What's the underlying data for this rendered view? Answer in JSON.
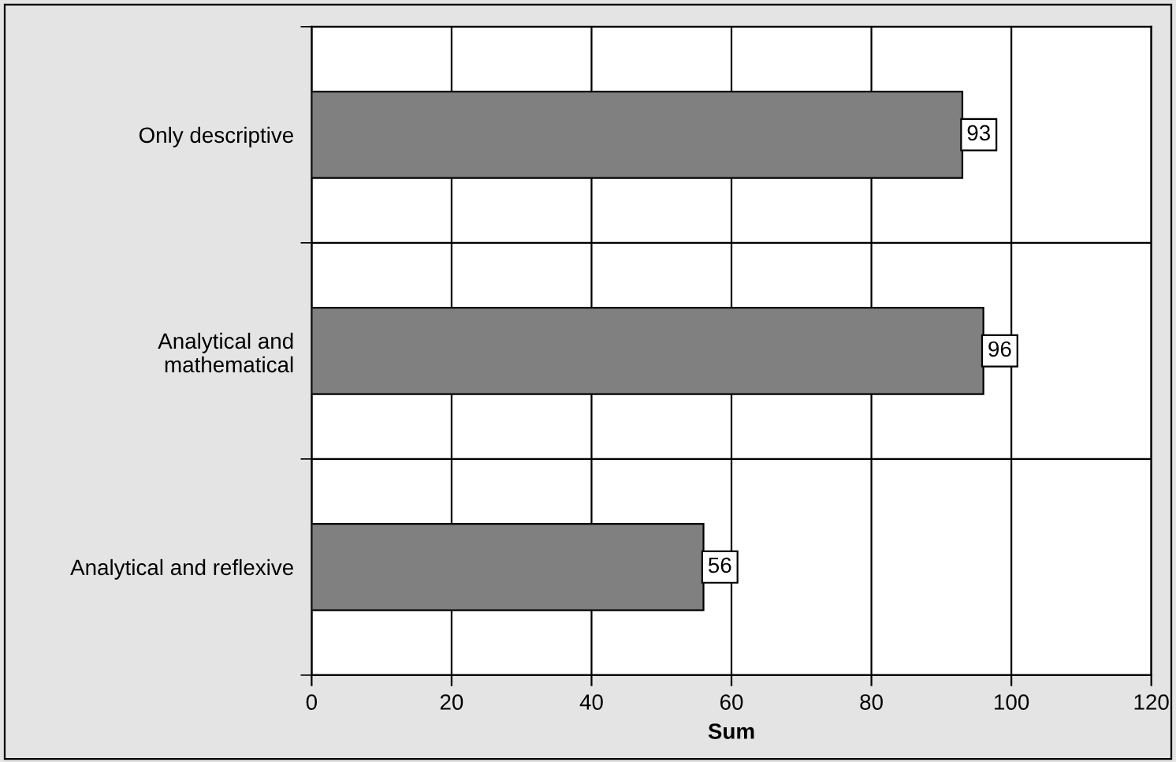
{
  "chart_data": {
    "type": "bar",
    "orientation": "horizontal",
    "xlabel": "Sum",
    "categories": [
      "Only descriptive",
      "Analytical and\nmathematical",
      "Analytical and reflexive"
    ],
    "values": [
      93,
      96,
      56
    ],
    "color": "#808080",
    "data_labels": true,
    "xlim": [
      0,
      120
    ],
    "xticks": [
      0,
      20,
      40,
      60,
      80,
      100,
      120
    ],
    "grid": true
  }
}
